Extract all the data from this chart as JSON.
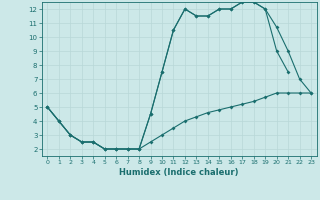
{
  "background_color": "#cce8e8",
  "grid_color": "#b8d8d8",
  "line_color": "#1a6e6e",
  "xlabel": "Humidex (Indice chaleur)",
  "xlim": [
    -0.5,
    23.5
  ],
  "ylim": [
    1.5,
    12.5
  ],
  "xticks": [
    0,
    1,
    2,
    3,
    4,
    5,
    6,
    7,
    8,
    9,
    10,
    11,
    12,
    13,
    14,
    15,
    16,
    17,
    18,
    19,
    20,
    21,
    22,
    23
  ],
  "yticks": [
    2,
    3,
    4,
    5,
    6,
    7,
    8,
    9,
    10,
    11,
    12
  ],
  "line1_x": [
    0,
    1,
    2,
    3,
    4,
    5,
    6,
    7,
    8,
    9,
    10,
    11,
    12,
    13,
    14,
    15,
    16,
    17,
    18,
    19,
    20,
    21
  ],
  "line1_y": [
    5,
    4,
    3,
    2.5,
    2.5,
    2,
    2,
    2,
    2,
    4.5,
    7.5,
    10.5,
    12,
    11.5,
    11.5,
    12,
    12,
    12.5,
    12.5,
    12,
    9,
    7.5
  ],
  "line2_x": [
    0,
    1,
    2,
    3,
    4,
    5,
    6,
    7,
    8,
    9,
    10,
    11,
    12,
    13,
    14,
    15,
    16,
    17,
    18,
    19,
    20,
    21,
    22,
    23
  ],
  "line2_y": [
    5,
    4,
    3,
    2.5,
    2.5,
    2,
    2,
    2,
    2,
    4.5,
    7.5,
    10.5,
    12,
    11.5,
    11.5,
    12,
    12,
    12.5,
    12.5,
    12,
    10.7,
    9,
    7,
    6
  ],
  "line3_x": [
    0,
    1,
    2,
    3,
    4,
    5,
    6,
    7,
    8,
    9,
    10,
    11,
    12,
    13,
    14,
    15,
    16,
    17,
    18,
    19,
    20,
    21,
    22,
    23
  ],
  "line3_y": [
    5,
    4,
    3,
    2.5,
    2.5,
    2,
    2,
    2,
    2,
    2.5,
    3.0,
    3.5,
    4.0,
    4.3,
    4.6,
    4.8,
    5.0,
    5.2,
    5.4,
    5.7,
    6.0,
    6.0,
    6.0,
    6.0
  ]
}
